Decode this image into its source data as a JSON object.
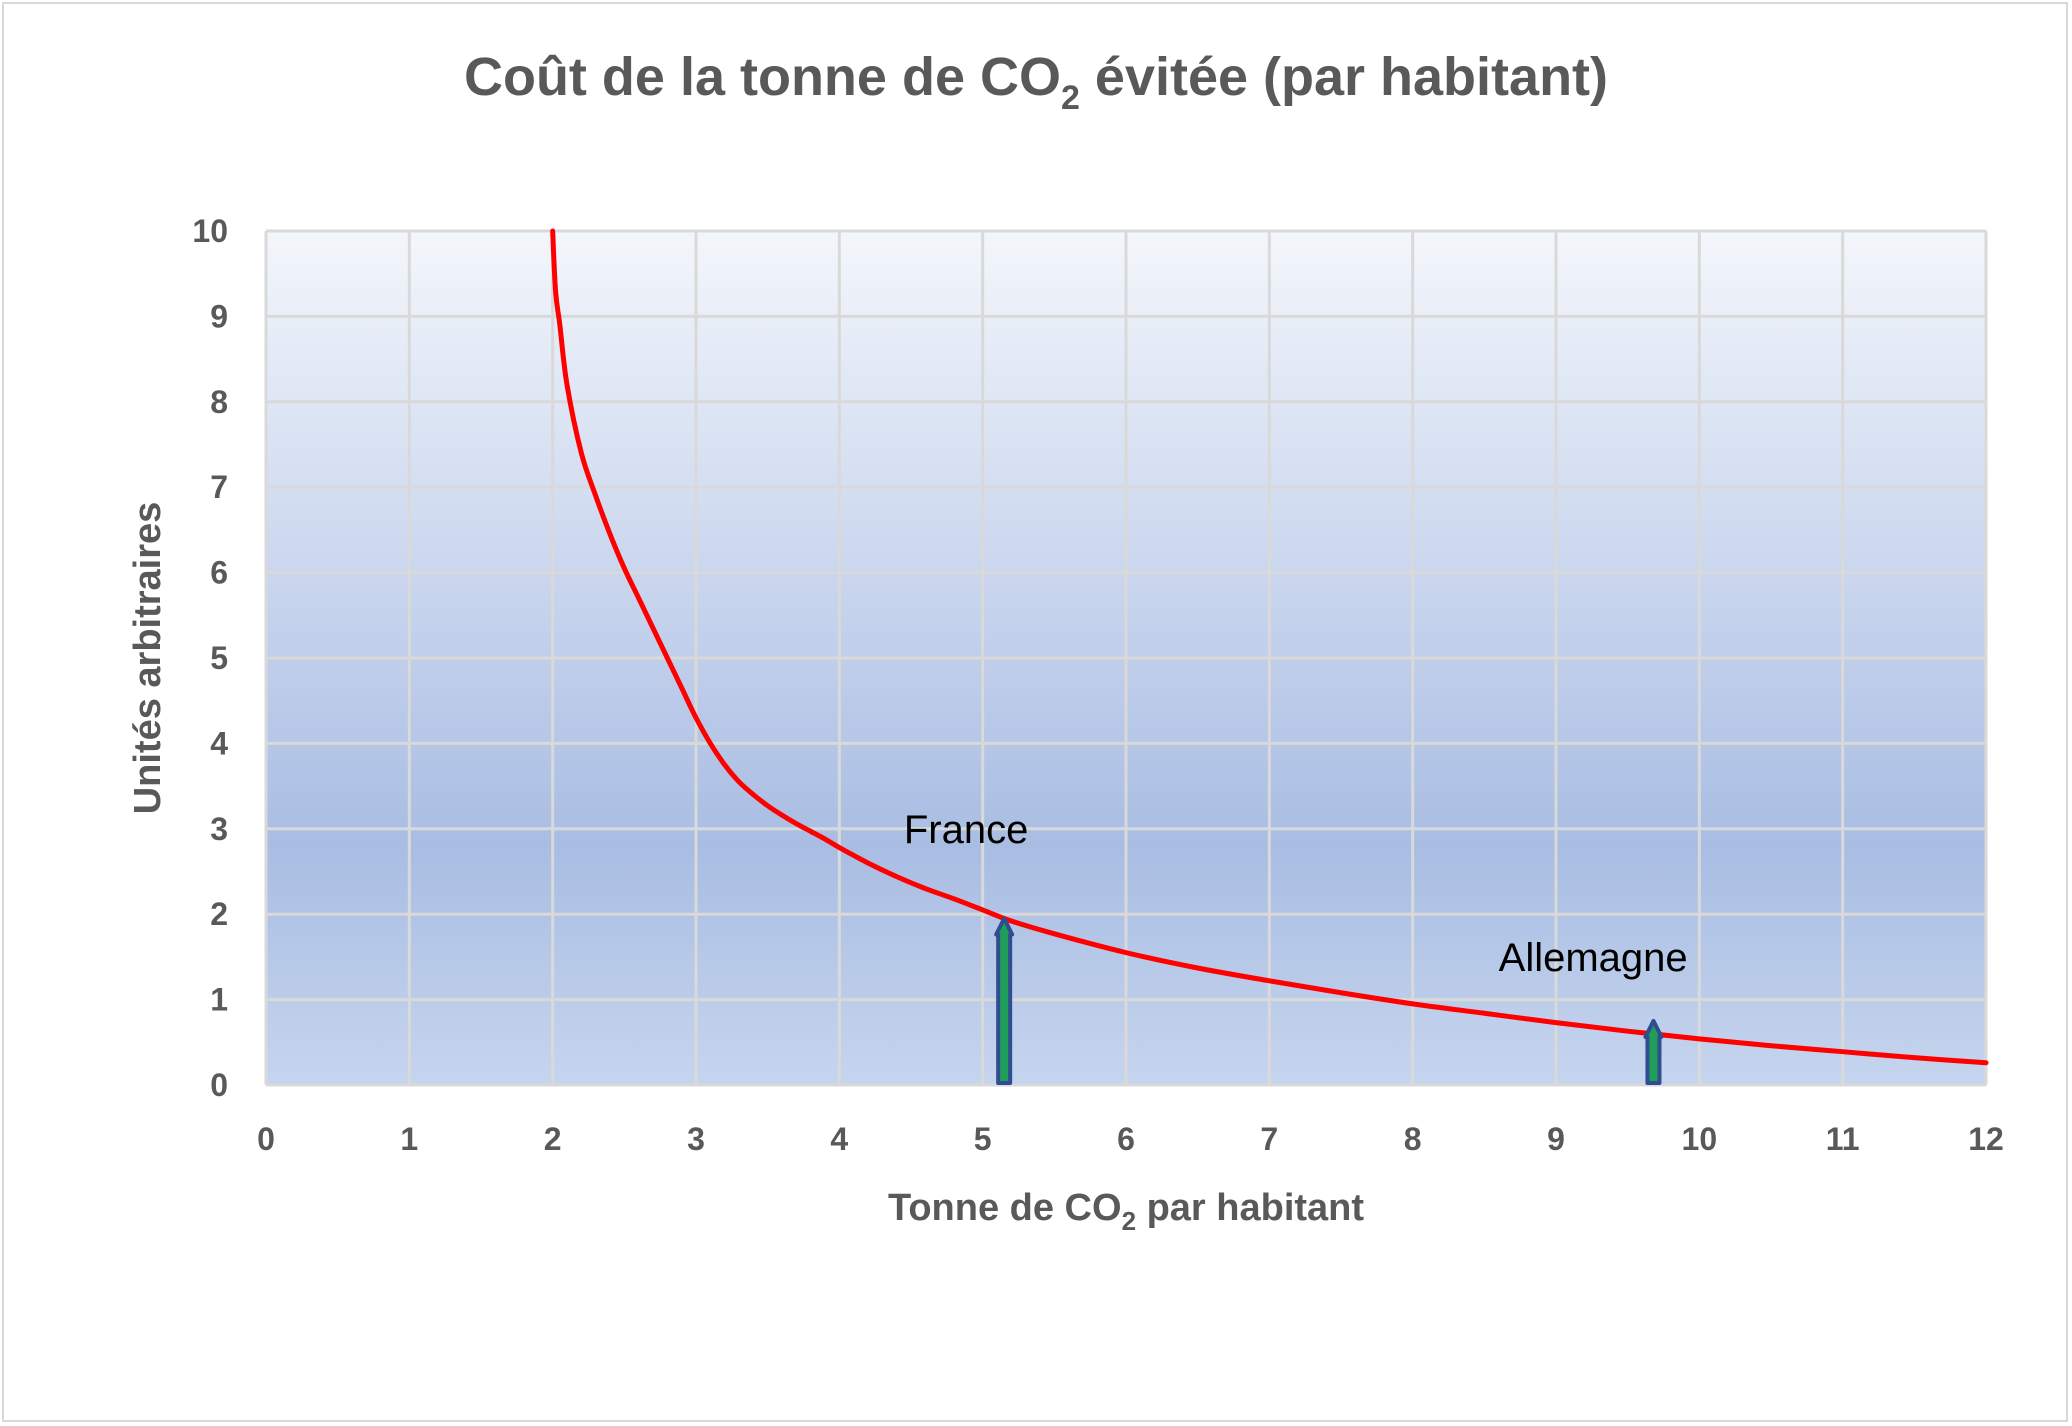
{
  "chart_data": {
    "type": "line",
    "title": {
      "main": "Coût de la tonne de CO",
      "subscript": "2",
      "rest": " évitée (par habitant)"
    },
    "xlabel": {
      "main": "Tonne de CO",
      "subscript": "2",
      "rest": " par habitant"
    },
    "ylabel": "Unités arbitraires",
    "xlim": [
      0,
      12
    ],
    "ylim": [
      0,
      10
    ],
    "xticks": [
      "0",
      "1",
      "2",
      "3",
      "4",
      "5",
      "6",
      "7",
      "8",
      "9",
      "10",
      "11",
      "12"
    ],
    "yticks": [
      "0",
      "1",
      "2",
      "3",
      "4",
      "5",
      "6",
      "7",
      "8",
      "9",
      "10"
    ],
    "grid": true,
    "legend": "none",
    "series": [
      {
        "color": "#ff0000",
        "x": [
          2.0,
          2.02,
          2.05,
          2.1,
          2.2,
          2.3,
          2.4,
          2.5,
          2.6,
          2.7,
          2.8,
          2.9,
          3.0,
          3.1,
          3.2,
          3.3,
          3.4,
          3.5,
          3.6,
          3.7,
          3.8,
          3.9,
          4.0,
          4.2,
          4.4,
          4.6,
          4.8,
          5.0,
          5.2,
          5.5,
          6.0,
          6.5,
          7.0,
          7.5,
          8.0,
          8.5,
          9.0,
          9.5,
          10.0,
          10.5,
          11.0,
          11.5,
          12.0
        ],
        "y": [
          10.0,
          9.3,
          8.9,
          8.2,
          7.4,
          6.9,
          6.45,
          6.05,
          5.7,
          5.35,
          5.0,
          4.65,
          4.3,
          4.0,
          3.75,
          3.55,
          3.4,
          3.27,
          3.16,
          3.06,
          2.97,
          2.88,
          2.78,
          2.6,
          2.44,
          2.3,
          2.18,
          2.05,
          1.92,
          1.77,
          1.55,
          1.37,
          1.22,
          1.08,
          0.95,
          0.84,
          0.73,
          0.63,
          0.54,
          0.46,
          0.39,
          0.32,
          0.26
        ]
      }
    ],
    "markers": [
      {
        "label": "France",
        "x": 5.15,
        "y": 1.95,
        "label_x": 4.45,
        "label_y": 3.0
      },
      {
        "label": "Allemagne",
        "x": 9.68,
        "y": 0.75,
        "label_x": 8.6,
        "label_y": 1.5
      }
    ],
    "colors": {
      "curve": "#ff0000",
      "arrow_fill": "#1e9e58",
      "arrow_stroke": "#2f4d8f",
      "grid": "#d9d9d9",
      "plot_top": "#f3f6fb",
      "plot_mid": "#a9bde3",
      "plot_bottom": "#c6d5ee"
    }
  }
}
